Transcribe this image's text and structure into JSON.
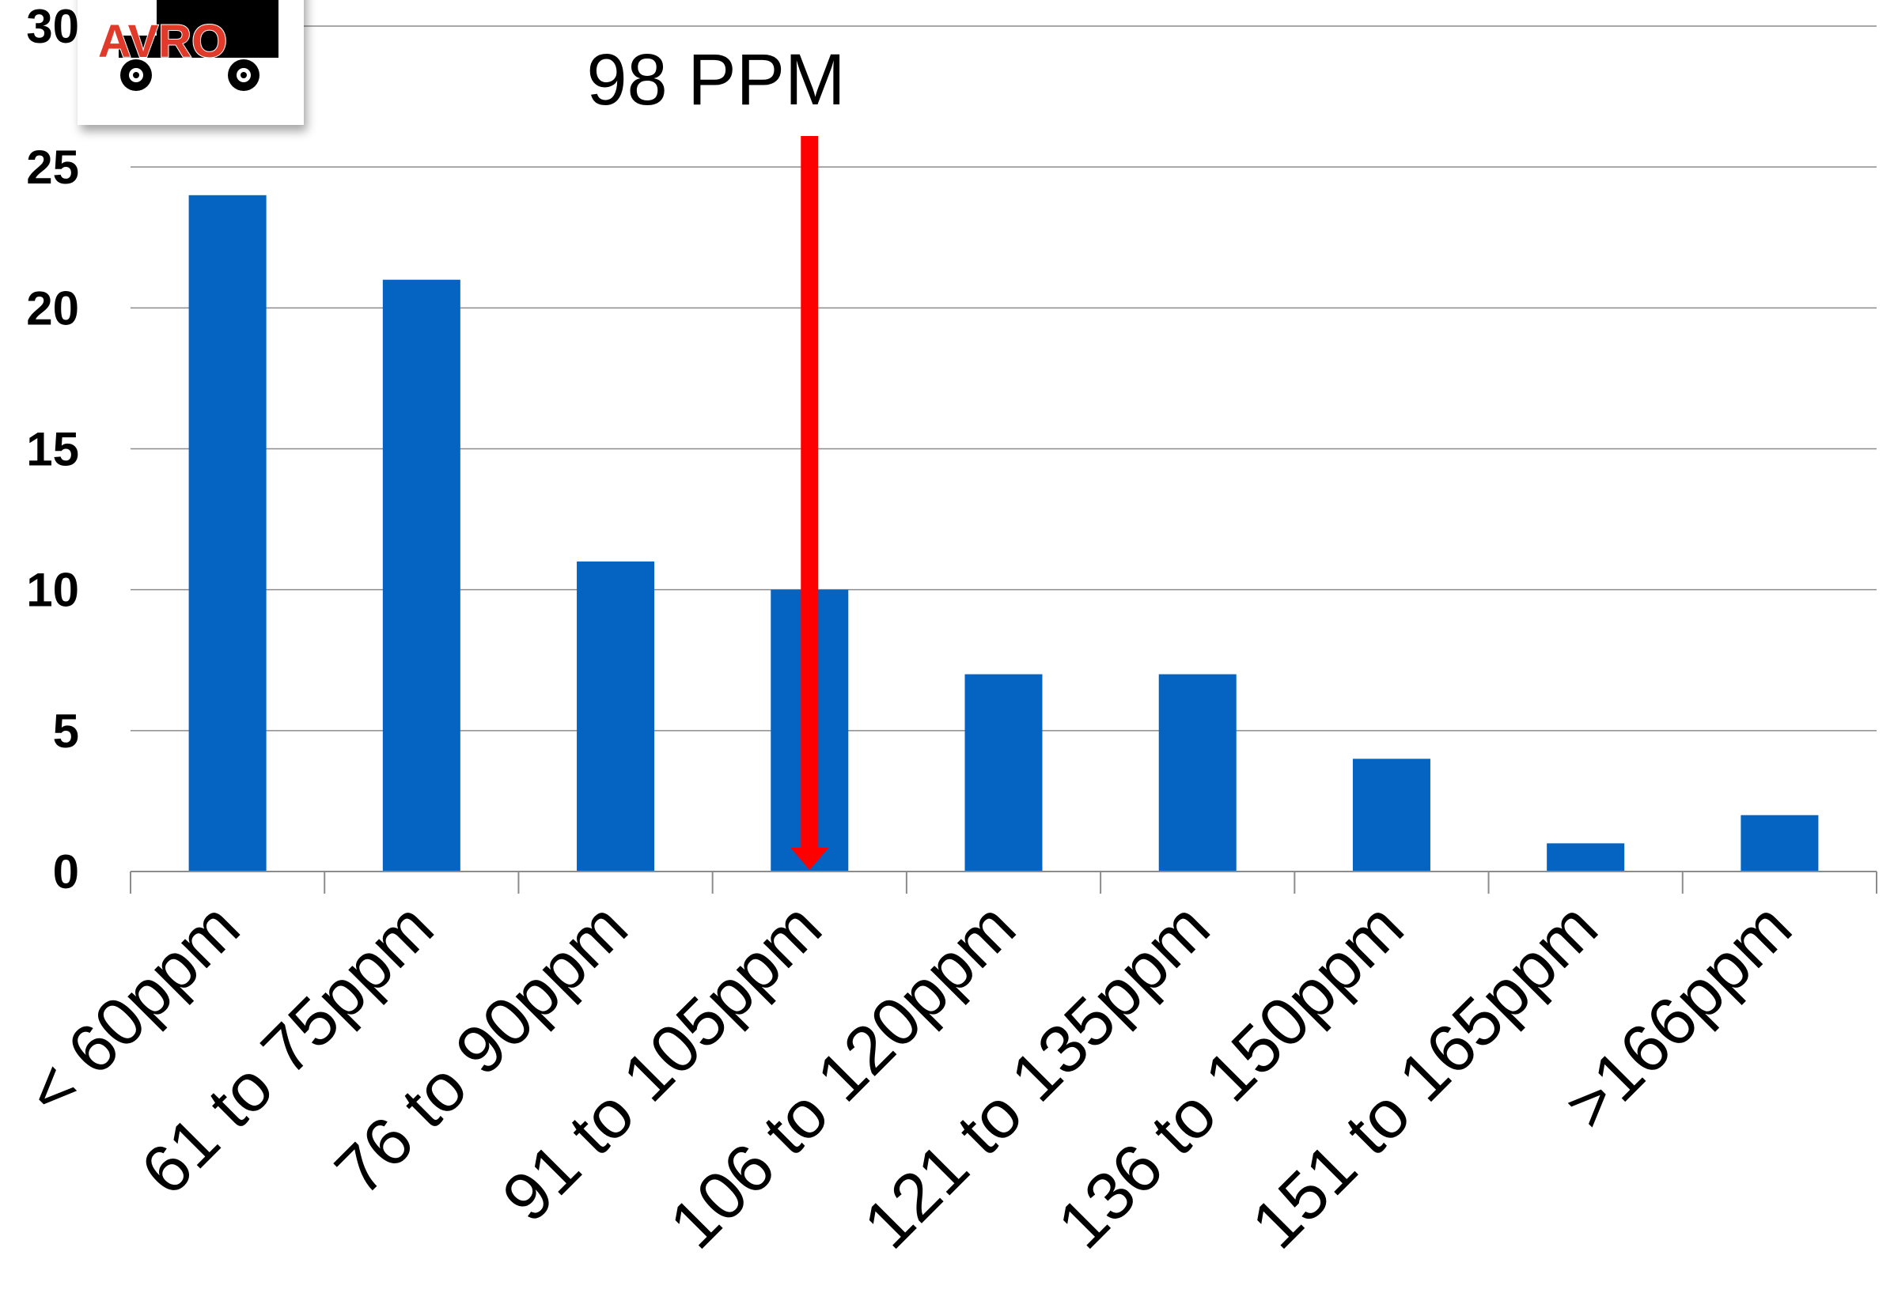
{
  "chart_data": {
    "type": "bar",
    "title": "",
    "xlabel": "",
    "ylabel": "",
    "categories": [
      "< 60ppm",
      "61 to 75ppm",
      "76 to 90ppm",
      "91 to 105ppm",
      "106 to 120ppm",
      "121 to 135ppm",
      "136 to 150ppm",
      "151 to 165ppm",
      ">166ppm"
    ],
    "values": [
      24,
      21,
      11,
      10,
      7,
      7,
      4,
      1,
      2
    ],
    "ylim": [
      0,
      30
    ],
    "yticks": [
      "0",
      "5",
      "10",
      "15",
      "20",
      "25",
      "30"
    ],
    "grid": true,
    "legend": "none",
    "bar_color": "#0563c1",
    "annotation": {
      "label": "98 PPM",
      "x_value": 98,
      "arrow_color": "#ff0000"
    }
  },
  "logo": {
    "text": "AVRO",
    "icon": "truck-icon",
    "text_color": "#e03a2a"
  }
}
